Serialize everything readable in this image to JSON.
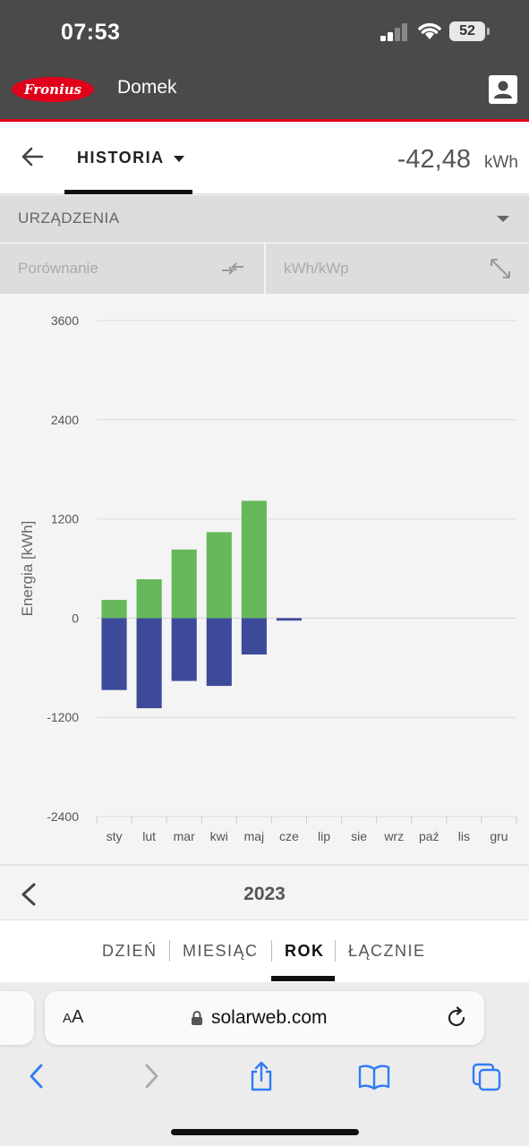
{
  "status_bar": {
    "time": "07:53",
    "battery_level": "52",
    "icons": [
      "signal-icon",
      "wifi-icon",
      "battery-icon"
    ]
  },
  "header": {
    "logo_text": "Fronius",
    "site_name": "Domek",
    "brand_color": "#e1001a",
    "icons": [
      "user-icon"
    ]
  },
  "nav": {
    "title": "HISTORIA",
    "total_value": "-42,48",
    "total_unit": "kWh",
    "icons": [
      "back-arrow-icon",
      "caret-down-icon"
    ]
  },
  "devices": {
    "label": "URZĄDZENIA"
  },
  "options": {
    "compare_label": "Porównanie",
    "normalize_label": "kWh/kWp",
    "icons": [
      "compare-arrows-icon",
      "expand-diagonal-icon"
    ]
  },
  "chart_data": {
    "type": "bar",
    "ylabel": "Energia [kWh]",
    "ylim": [
      -2400,
      3600
    ],
    "yticks": [
      3600,
      2400,
      1200,
      0,
      -1200,
      -2400
    ],
    "ytick_labels": [
      "3600",
      "2400",
      "1200",
      "0",
      "-1200",
      "-2400"
    ],
    "categories": [
      "sty",
      "lut",
      "mar",
      "kwi",
      "maj",
      "cze",
      "lip",
      "sie",
      "wrz",
      "paź",
      "lis",
      "gru"
    ],
    "series": [
      {
        "color": "#66b85a",
        "values": [
          220,
          470,
          830,
          1040,
          1420,
          0,
          0,
          0,
          0,
          0,
          0,
          0
        ]
      },
      {
        "color": "#3d4a9a",
        "values": [
          -870,
          -1090,
          -760,
          -820,
          -440,
          -30,
          0,
          0,
          0,
          0,
          0,
          0
        ]
      }
    ],
    "grid": true
  },
  "period": {
    "year": "2023",
    "tabs": [
      {
        "label": "DZIEŃ"
      },
      {
        "label": "MIESIĄC"
      },
      {
        "label": "ROK"
      },
      {
        "label": "ŁĄCZNIE"
      }
    ],
    "active_tab": "ROK",
    "icons": [
      "chevron-left-icon"
    ]
  },
  "browser": {
    "aa_label_small": "A",
    "aa_label_large": "A",
    "url": "solarweb.com",
    "icons": [
      "lock-icon",
      "reload-icon",
      "back-icon",
      "forward-icon",
      "share-icon",
      "bookmarks-icon",
      "tabs-icon"
    ]
  }
}
